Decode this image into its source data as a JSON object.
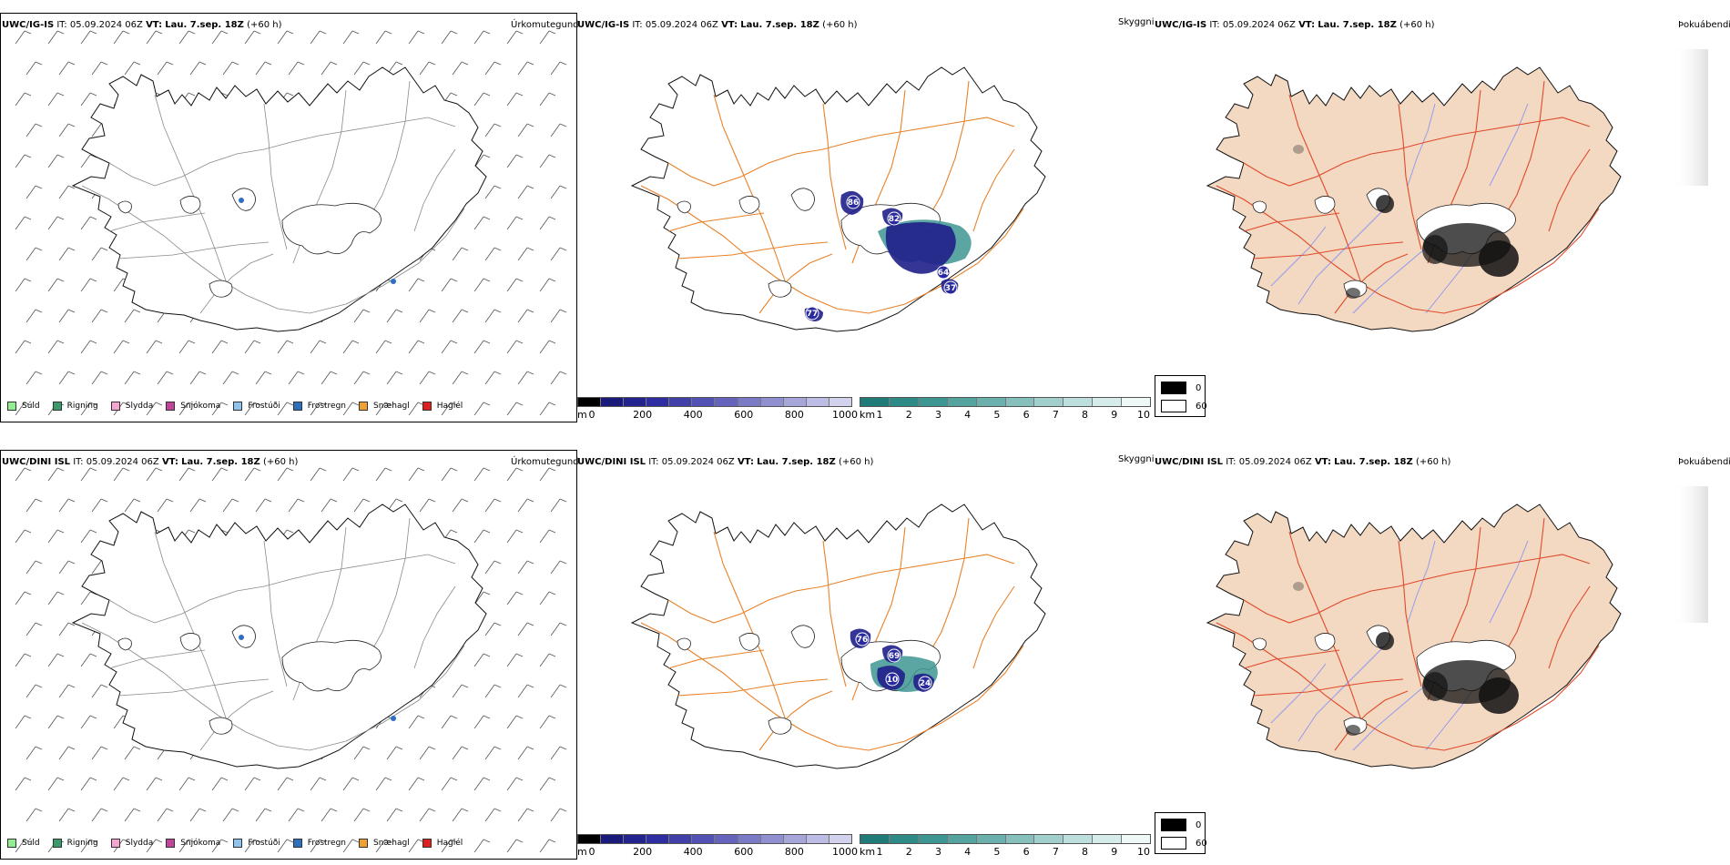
{
  "rows": [
    {
      "model": "UWC/IG-IS",
      "panels": [
        {
          "title": "Úrkomutegund"
        },
        {
          "title": "Skyggni",
          "peaks": [
            "64",
            "86",
            "82",
            "37",
            "77"
          ]
        },
        {
          "title": "Þokuábendi"
        }
      ]
    },
    {
      "model": "UWC/DINI ISL",
      "panels": [
        {
          "title": "Úrkomutegund"
        },
        {
          "title": "Skyggni",
          "peaks": [
            "76",
            "69",
            "10",
            "24"
          ]
        },
        {
          "title": "Þokuábendi"
        }
      ]
    }
  ],
  "header": {
    "it_label": "IT:",
    "it_value": "05.09.2024 06Z",
    "vt_label": "VT:",
    "vt_value": "Lau. 7.sep. 18Z",
    "lead": "(+60 h)"
  },
  "precip_legend": [
    {
      "label": "Súld",
      "color": "#90ee90"
    },
    {
      "label": "Rigning",
      "color": "#3a9a6a"
    },
    {
      "label": "Slydda",
      "color": "#f4a6d0"
    },
    {
      "label": "Snjókoma",
      "color": "#c0449a"
    },
    {
      "label": "Frostúði",
      "color": "#8ec4f0"
    },
    {
      "label": "Frostregn",
      "color": "#2f6fc0"
    },
    {
      "label": "Snæhagl",
      "color": "#f0a030"
    },
    {
      "label": "Haglél",
      "color": "#e02020"
    }
  ],
  "height_bar": {
    "unit": "m",
    "ticks": [
      "0",
      "200",
      "400",
      "600",
      "800",
      "1000"
    ],
    "colors": [
      "#000000",
      "#1a1a7a",
      "#23238f",
      "#2e2ea0",
      "#4040a8",
      "#5252b4",
      "#6464bc",
      "#7a7ac6",
      "#9090d0",
      "#a6a6da",
      "#bcbce4",
      "#d2d2ee"
    ]
  },
  "vis_bar": {
    "unit": "km",
    "ticks": [
      "1",
      "2",
      "3",
      "4",
      "5",
      "6",
      "7",
      "8",
      "9",
      "10"
    ],
    "colors": [
      "#1f7a78",
      "#2e8a86",
      "#3e9692",
      "#55a39f",
      "#6cb0ad",
      "#86bfbc",
      "#a0cfcc",
      "#bcdedc",
      "#d6ecea",
      "#eef8f7"
    ]
  },
  "fog_legend": [
    {
      "label": "0",
      "color": "#000000"
    },
    {
      "label": "60",
      "color": "#ffffff"
    }
  ],
  "colors": {
    "roads_orange": "#e8822a",
    "roads_red": "#e04a2a",
    "land_fog": "#f3d8c2",
    "rivers": "#8a96f0",
    "coast": "#111111"
  }
}
